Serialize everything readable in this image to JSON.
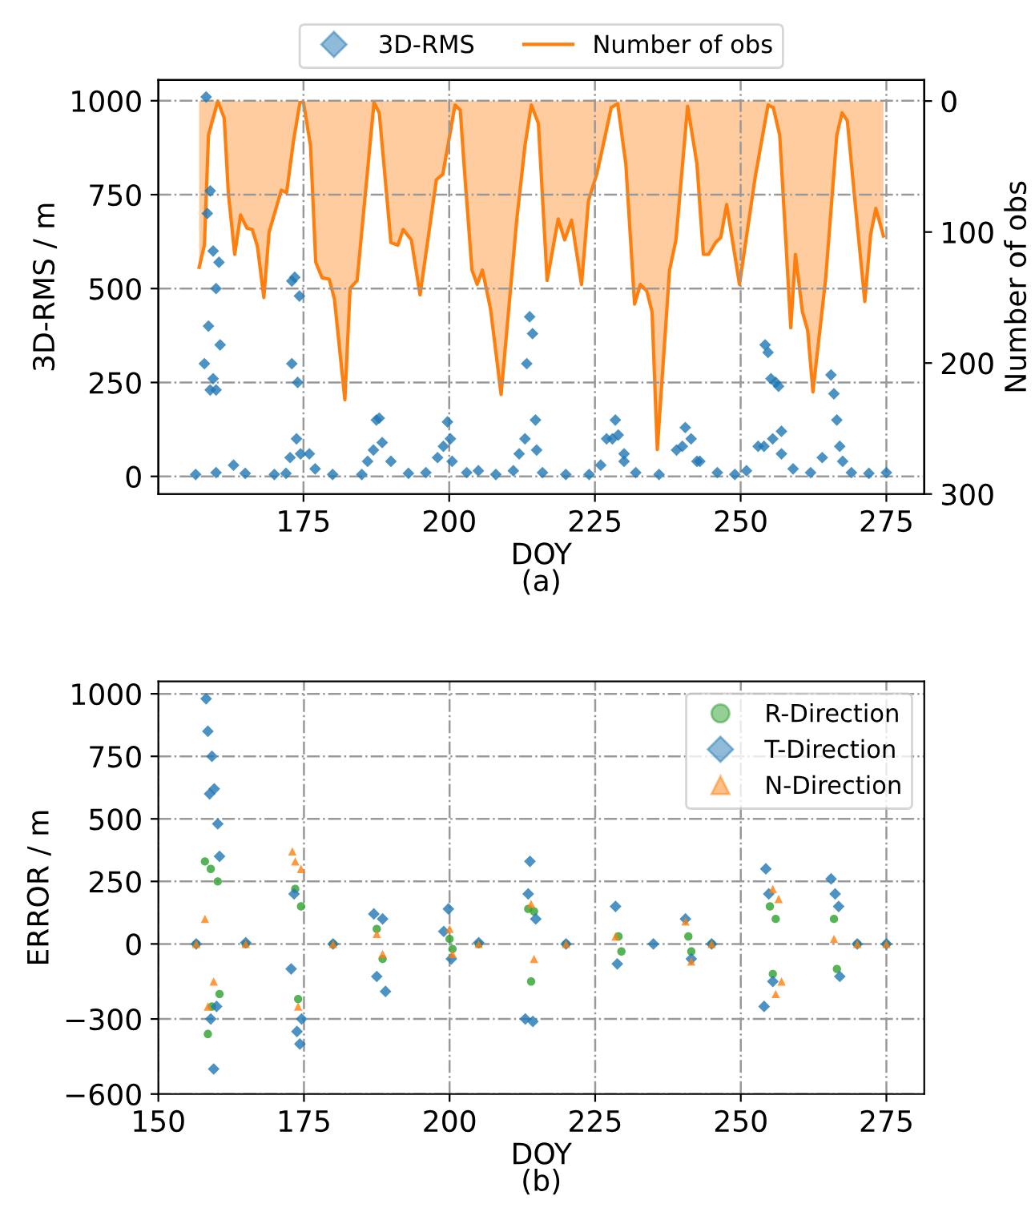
{
  "chart_data": [
    {
      "type": "scatter",
      "xlabel": "DOY",
      "ylabel": "3D-RMS / m",
      "y2label": "Number of obs",
      "annotations": [
        "(a)"
      ],
      "xlim": [
        150.1,
        281.5
      ],
      "xticks": [
        175,
        200,
        225,
        250,
        275
      ],
      "ylim": [
        -47,
        1055
      ],
      "yticks": [
        0,
        250,
        500,
        750,
        1000
      ],
      "y2lim": [
        300,
        -16
      ],
      "y2ticks": [
        0,
        100,
        200,
        300
      ],
      "grid": true,
      "legend": "top",
      "series": [
        {
          "name": "3D-RMS",
          "type": "scatter",
          "marker": "diamond",
          "color": "#1f77b4",
          "x": [
            156.5,
            160,
            163,
            165,
            170,
            172,
            176,
            177,
            180,
            185,
            186,
            190,
            193,
            196,
            198,
            203,
            205,
            208,
            211,
            212,
            216,
            220,
            224,
            226,
            227,
            230,
            232,
            236,
            239,
            243,
            246,
            249,
            251,
            253,
            257,
            259,
            262,
            264,
            269,
            272,
            275,
            158,
            158.3,
            158.5,
            158.7,
            159,
            159,
            159.5,
            159.5,
            160,
            160,
            160.5,
            160.7,
            172.7,
            173,
            173,
            173.5,
            173.8,
            174,
            174.3,
            174.5,
            187,
            187.5,
            188,
            188.5,
            199,
            199.7,
            200.2,
            200.5,
            213,
            213.3,
            213.8,
            214.3,
            214.8,
            215,
            228,
            228.5,
            229,
            230,
            240,
            240.5,
            241.5,
            242.5,
            254,
            254.2,
            254.7,
            255.2,
            255.5,
            256,
            256.5,
            257,
            265.5,
            266,
            266.5,
            267,
            267.5
          ],
          "values": [
            5,
            10,
            30,
            8,
            5,
            8,
            60,
            20,
            5,
            5,
            40,
            40,
            8,
            10,
            50,
            10,
            15,
            5,
            15,
            60,
            10,
            5,
            5,
            30,
            100,
            40,
            10,
            5,
            70,
            40,
            10,
            5,
            15,
            80,
            60,
            20,
            10,
            50,
            10,
            8,
            10,
            300,
            1010,
            700,
            400,
            760,
            230,
            600,
            260,
            500,
            230,
            570,
            350,
            50,
            300,
            520,
            530,
            100,
            250,
            480,
            60,
            70,
            150,
            155,
            90,
            80,
            145,
            100,
            40,
            100,
            300,
            425,
            380,
            150,
            70,
            100,
            150,
            110,
            60,
            80,
            130,
            100,
            40,
            80,
            350,
            330,
            260,
            100,
            250,
            240,
            120,
            270,
            220,
            150,
            80,
            40
          ]
        },
        {
          "name": "Number of obs",
          "type": "area",
          "axis": "y2",
          "color": "#ff7f0e",
          "x": [
            157.1,
            158,
            158.7,
            160.3,
            161.4,
            162.1,
            163.2,
            164.2,
            165.3,
            166.2,
            167.1,
            168.2,
            169.1,
            171.2,
            172.1,
            173.3,
            174.4,
            175,
            176.2,
            177.1,
            178.2,
            179.4,
            180.3,
            182.1,
            183,
            184.2,
            187.1,
            188,
            190,
            191.2,
            192.1,
            193.5,
            195,
            197.8,
            198.9,
            201,
            201.9,
            202.5,
            203.9,
            204.8,
            205.7,
            207.1,
            208.9,
            211.6,
            213,
            214.1,
            215.3,
            216.8,
            218.7,
            219.8,
            221,
            222.7,
            223.9,
            225.3,
            226.4,
            227.8,
            228.9,
            230.3,
            231.8,
            232.8,
            233.9,
            234.8,
            235.7,
            237.8,
            238.9,
            240.9,
            242.5,
            243.6,
            244.5,
            245.7,
            246.6,
            247.6,
            249.8,
            252.5,
            254.7,
            255.6,
            256.7,
            258.6,
            259.4,
            260.6,
            261.5,
            262.4,
            264.6,
            266.5,
            267.4,
            268.3,
            269.6,
            271.3,
            272.3,
            273.2,
            274.5
          ],
          "values": [
            127,
            110,
            26,
            0,
            13,
            70,
            117,
            87,
            97,
            98,
            111,
            150,
            100,
            68,
            70,
            30,
            1,
            1,
            34,
            123,
            135,
            136,
            151,
            228,
            143,
            137,
            1,
            9,
            108,
            110,
            98,
            106,
            148,
            60,
            56,
            3,
            7,
            46,
            129,
            140,
            129,
            159,
            224,
            90,
            34,
            3,
            17,
            137,
            90,
            106,
            91,
            140,
            76,
            56,
            34,
            5,
            2,
            48,
            155,
            140,
            145,
            161,
            266,
            129,
            106,
            4,
            48,
            117,
            117,
            108,
            104,
            79,
            140,
            58,
            3,
            5,
            26,
            173,
            117,
            161,
            175,
            222,
            135,
            26,
            9,
            15,
            76,
            153,
            102,
            82,
            103
          ]
        }
      ]
    },
    {
      "type": "scatter",
      "xlabel": "DOY",
      "ylabel": "ERROR / m",
      "annotations": [
        "(b)"
      ],
      "xlim": [
        150,
        281.5
      ],
      "xticks": [
        150,
        175,
        200,
        225,
        250,
        275
      ],
      "ylim": [
        -600,
        1050
      ],
      "yticks": [
        -600,
        -300,
        0,
        250,
        500,
        750,
        1000
      ],
      "grid": true,
      "legend": "top right",
      "series": [
        {
          "name": "R-Direction",
          "marker": "circle",
          "color": "#2ca02c",
          "x": [
            156.5,
            158,
            158.5,
            159,
            159.2,
            160.2,
            160.5,
            165,
            173.5,
            174,
            174.5,
            180,
            187.5,
            188.5,
            200,
            200.5,
            205,
            213.5,
            214,
            214.5,
            220,
            229,
            229.5,
            241,
            241.5,
            245,
            255,
            255.5,
            256,
            266,
            266.5,
            270,
            275
          ],
          "values": [
            0,
            330,
            -360,
            300,
            -250,
            250,
            -200,
            0,
            220,
            -220,
            150,
            0,
            60,
            -60,
            20,
            -20,
            0,
            140,
            -150,
            130,
            0,
            30,
            -30,
            30,
            -30,
            0,
            150,
            -120,
            100,
            100,
            -100,
            0,
            0
          ]
        },
        {
          "name": "T-Direction",
          "marker": "diamond",
          "color": "#1f77b4",
          "x": [
            156.5,
            158.2,
            158.5,
            158.8,
            159.2,
            159.6,
            160.2,
            160.5,
            159,
            159.5,
            160,
            165,
            172.8,
            173.3,
            173.8,
            174.3,
            174.6,
            180,
            187,
            187.5,
            188.5,
            189,
            199,
            199.8,
            200.3,
            205,
            213,
            213.5,
            213.8,
            214.3,
            214.8,
            220,
            228.5,
            228.8,
            235,
            240.5,
            241.5,
            245,
            254,
            254.3,
            254.8,
            255.5,
            265.5,
            266.2,
            266.8,
            267,
            270,
            275
          ],
          "values": [
            0,
            980,
            850,
            600,
            750,
            620,
            480,
            350,
            -300,
            -500,
            -250,
            5,
            -100,
            200,
            -350,
            -400,
            -300,
            0,
            120,
            -130,
            100,
            -190,
            50,
            140,
            -60,
            5,
            -300,
            200,
            330,
            -310,
            100,
            0,
            150,
            -80,
            0,
            100,
            -60,
            0,
            -250,
            300,
            200,
            -150,
            260,
            200,
            150,
            -130,
            0,
            0
          ]
        },
        {
          "name": "N-Direction",
          "marker": "triangle",
          "color": "#ff7f0e",
          "x": [
            156.5,
            158,
            158.5,
            159.5,
            165,
            173,
            173.5,
            174,
            174.5,
            180,
            187.5,
            188.5,
            200,
            200.5,
            205,
            214,
            214.5,
            220,
            228.5,
            240.5,
            241.5,
            245,
            255.5,
            256,
            256.5,
            257,
            266,
            270,
            275
          ],
          "values": [
            0,
            100,
            -250,
            -150,
            0,
            370,
            330,
            -250,
            300,
            0,
            40,
            -40,
            60,
            -40,
            0,
            160,
            -60,
            0,
            30,
            90,
            -70,
            0,
            220,
            -200,
            180,
            -150,
            20,
            0,
            0
          ]
        }
      ]
    }
  ]
}
